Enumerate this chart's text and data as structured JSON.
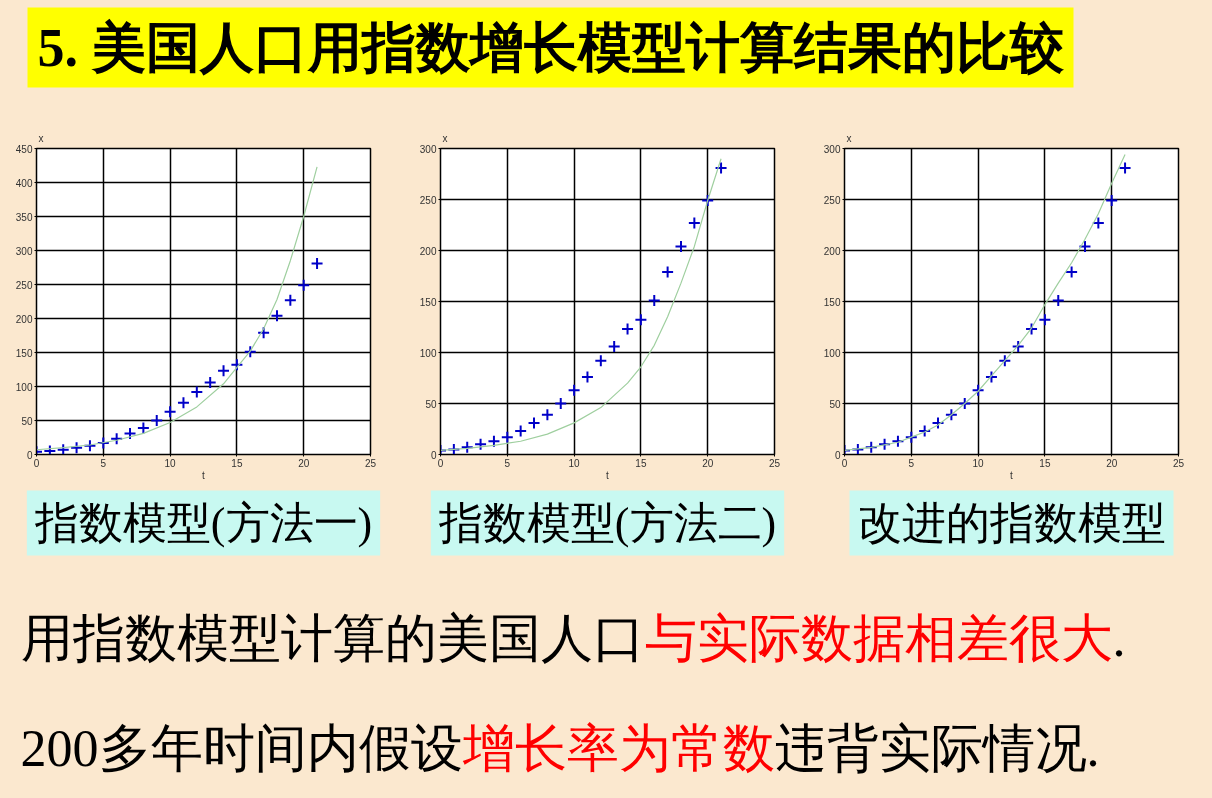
{
  "chart_data": [
    {
      "type": "other",
      "title": "5. 美国人口用指数增长模型计算结果的比较"
    },
    {
      "type": "scatter",
      "title": "指数模型(方法一)",
      "xlabel": "t",
      "ylabel": "x",
      "xlim": [
        0,
        25
      ],
      "xticks": [
        0,
        5,
        10,
        15,
        20,
        25
      ],
      "ylim": [
        0,
        450
      ],
      "yticks": [
        0,
        50,
        100,
        150,
        200,
        250,
        300,
        350,
        400,
        450
      ],
      "grid": true,
      "marker": "cross",
      "series": [
        {
          "color": "#0000c8",
          "x": [
            0,
            1,
            2,
            3,
            4,
            5,
            6,
            7,
            8,
            9,
            10,
            11,
            12,
            13,
            14,
            15,
            16,
            17,
            18,
            19,
            20,
            21
          ],
          "values": [
            4,
            5,
            7,
            10,
            13,
            17,
            23,
            31,
            39,
            50,
            63,
            76,
            92,
            106,
            123,
            132,
            151,
            179,
            204,
            227,
            249,
            281
          ]
        },
        {
          "type": "line",
          "marker": "none",
          "color": "#9fcf9f",
          "x": [
            0,
            2,
            4,
            6,
            8,
            10,
            12,
            14,
            15,
            16,
            17,
            18,
            19,
            20,
            21
          ],
          "values": [
            7,
            10,
            14,
            21,
            31,
            47,
            70,
            104,
            128,
            152,
            185,
            228,
            285,
            350,
            423
          ]
        }
      ]
    },
    {
      "type": "scatter",
      "title": "指数模型(方法二)",
      "xlabel": "t",
      "ylabel": "x",
      "xlim": [
        0,
        25
      ],
      "xticks": [
        0,
        5,
        10,
        15,
        20,
        25
      ],
      "ylim": [
        0,
        300
      ],
      "yticks": [
        0,
        50,
        100,
        150,
        200,
        250,
        300
      ],
      "grid": true,
      "marker": "cross",
      "series": [
        {
          "color": "#0000c8",
          "x": [
            0,
            1,
            2,
            3,
            4,
            5,
            6,
            7,
            8,
            9,
            10,
            11,
            12,
            13,
            14,
            15,
            16,
            17,
            18,
            19,
            20,
            21
          ],
          "values": [
            4,
            5,
            7,
            10,
            13,
            17,
            23,
            31,
            39,
            50,
            63,
            76,
            92,
            106,
            123,
            132,
            151,
            179,
            204,
            227,
            249,
            281
          ]
        },
        {
          "type": "line",
          "marker": "none",
          "color": "#9fcf9f",
          "x": [
            0,
            2,
            4,
            6,
            8,
            10,
            12,
            14,
            15,
            16,
            17,
            18,
            19,
            20,
            21
          ],
          "values": [
            4,
            6,
            9,
            13,
            20,
            31,
            46,
            70,
            86,
            107,
            135,
            168,
            204,
            249,
            290
          ]
        }
      ]
    },
    {
      "type": "scatter",
      "title": "改进的指数模型",
      "xlabel": "t",
      "ylabel": "x",
      "xlim": [
        0,
        25
      ],
      "xticks": [
        0,
        5,
        10,
        15,
        20,
        25
      ],
      "ylim": [
        0,
        300
      ],
      "yticks": [
        0,
        50,
        100,
        150,
        200,
        250,
        300
      ],
      "grid": true,
      "marker": "cross",
      "series": [
        {
          "color": "#0000c8",
          "x": [
            0,
            1,
            2,
            3,
            4,
            5,
            6,
            7,
            8,
            9,
            10,
            11,
            12,
            13,
            14,
            15,
            16,
            17,
            18,
            19,
            20,
            21
          ],
          "values": [
            4,
            5,
            7,
            10,
            13,
            17,
            23,
            31,
            39,
            50,
            63,
            76,
            92,
            106,
            123,
            132,
            151,
            179,
            204,
            227,
            249,
            281
          ]
        },
        {
          "type": "line",
          "marker": "none",
          "color": "#9fcf9f",
          "x": [
            0,
            2,
            4,
            5,
            6,
            7,
            8,
            9,
            10,
            11,
            12,
            13,
            14,
            15,
            16,
            17,
            18,
            19,
            20,
            21
          ],
          "values": [
            4,
            7,
            12,
            17,
            22,
            29,
            39,
            50,
            62,
            77,
            92,
            107,
            124,
            147,
            168,
            188,
            211,
            236,
            266,
            294
          ]
        }
      ]
    },
    {
      "type": "other",
      "annotations": [
        "用指数模型计算的美国人口",
        "与实际数据相差很大",
        ".",
        "200多年时间内假设",
        "增长率为常数",
        "违背实际情况."
      ]
    }
  ]
}
